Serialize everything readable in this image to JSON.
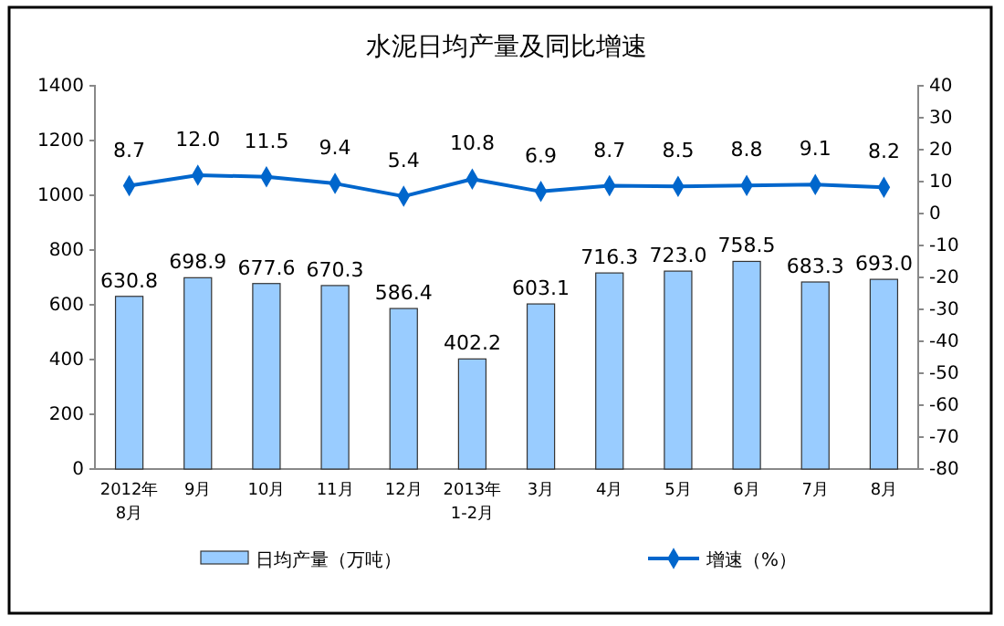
{
  "chart_data": {
    "type": "bar",
    "title": "水泥日均产量及同比增速",
    "categories": [
      "2012年\n8月",
      "9月",
      "10月",
      "11月",
      "12月",
      "2013年\n1-2月",
      "3月",
      "4月",
      "5月",
      "6月",
      "7月",
      "8月"
    ],
    "series": [
      {
        "name": "日均产量（万吨）",
        "color": "#99ccff",
        "values": [
          630.8,
          698.9,
          677.6,
          670.3,
          586.4,
          402.2,
          603.1,
          716.3,
          723.0,
          758.5,
          683.3,
          693.0
        ],
        "value_labels": [
          "630.8",
          "698.9",
          "677.6",
          "670.3",
          "586.4",
          "402.2",
          "603.1",
          "716.3",
          "723.0",
          "758.5",
          "683.3",
          "693.0"
        ]
      },
      {
        "name": "增速（%）",
        "type": "line",
        "axis": "y2",
        "color": "#0066cc",
        "marker": "diamond",
        "values": [
          8.7,
          12.0,
          11.5,
          9.4,
          5.4,
          10.8,
          6.9,
          8.7,
          8.5,
          8.8,
          9.1,
          8.2
        ],
        "value_labels": [
          "8.7",
          "12.0",
          "11.5",
          "9.4",
          "5.4",
          "10.8",
          "6.9",
          "8.7",
          "8.5",
          "8.8",
          "9.1",
          "8.2"
        ]
      }
    ],
    "ylim": [
      0,
      1400
    ],
    "yticks": [
      0,
      200,
      400,
      600,
      800,
      1000,
      1200,
      1400
    ],
    "y2lim": [
      -80,
      40
    ],
    "y2ticks": [
      -80,
      -70,
      -60,
      -50,
      -40,
      -30,
      -20,
      -10,
      0,
      10,
      20,
      30,
      40
    ],
    "grid": false,
    "legend": "bottom"
  }
}
